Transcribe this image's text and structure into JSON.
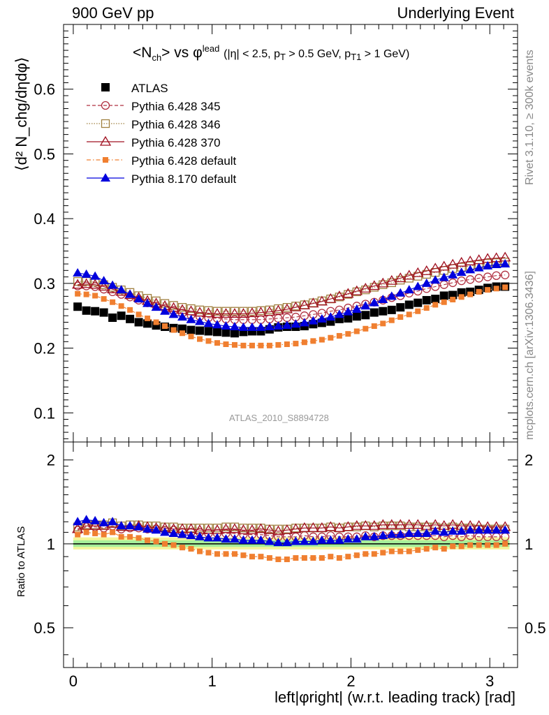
{
  "header": {
    "left": "900 GeV pp",
    "right": "Underlying Event"
  },
  "side_text": {
    "rivet": "Rivet 3.1.10, ≥ 300k events",
    "mcplots": "mcplots.cern.ch [arXiv:1306.3436]"
  },
  "analysis_id": "ATLAS_2010_S8894728",
  "title": {
    "main": "<N",
    "main_sub": "ch",
    "vs": "> vs φ",
    "vs_sup": "lead",
    "cuts": "(|η| < 2.5, p",
    "cuts_sub1": "T",
    "cuts_mid": " > 0.5 GeV, p",
    "cuts_sub2": "T1",
    "cuts_end": " > 1 GeV)"
  },
  "axes": {
    "ylabel_main": "⟨d² N_chg/dηdφ⟩",
    "ylabel_ratio": "Ratio to ATLAS",
    "xlabel": "left|φright| (w.r.t. leading track) [rad]"
  },
  "chart_data": {
    "type": "scatter",
    "xlim": [
      -0.07,
      3.2
    ],
    "main_ylim": [
      0.055,
      0.7
    ],
    "ratio_ylim": [
      0.36,
      2.32
    ],
    "main_yticks": [
      "0.1",
      "0.2",
      "0.3",
      "0.4",
      "0.5",
      "0.6"
    ],
    "ratio_yticks": [
      "0.5",
      "1",
      "2"
    ],
    "xticks": [
      "0",
      "1",
      "2",
      "3"
    ],
    "x": [
      0.0314,
      0.0942,
      0.1571,
      0.2199,
      0.2827,
      0.3456,
      0.4084,
      0.4712,
      0.5341,
      0.5969,
      0.6597,
      0.7226,
      0.7854,
      0.8482,
      0.9111,
      0.9739,
      1.0367,
      1.0996,
      1.1624,
      1.2252,
      1.2881,
      1.3509,
      1.4137,
      1.4765,
      1.5394,
      1.6022,
      1.665,
      1.7279,
      1.7907,
      1.8535,
      1.9164,
      1.9792,
      2.042,
      2.1049,
      2.1677,
      2.2305,
      2.2934,
      2.3562,
      2.419,
      2.4819,
      2.5447,
      2.6075,
      2.6704,
      2.7332,
      2.796,
      2.8588,
      2.9217,
      2.9845,
      3.0473,
      3.1102
    ],
    "series": [
      {
        "name": "ATLAS",
        "color": "#000000",
        "marker": "square-filled",
        "line": "none",
        "values": [
          0.264,
          0.258,
          0.257,
          0.255,
          0.247,
          0.25,
          0.245,
          0.24,
          0.238,
          0.235,
          0.233,
          0.231,
          0.23,
          0.228,
          0.227,
          0.226,
          0.225,
          0.224,
          0.223,
          0.225,
          0.226,
          0.226,
          0.229,
          0.232,
          0.233,
          0.233,
          0.234,
          0.237,
          0.239,
          0.241,
          0.245,
          0.246,
          0.249,
          0.251,
          0.255,
          0.257,
          0.259,
          0.263,
          0.267,
          0.27,
          0.274,
          0.276,
          0.281,
          0.282,
          0.286,
          0.287,
          0.29,
          0.293,
          0.295,
          0.295
        ],
        "ratio": [
          1,
          1,
          1,
          1,
          1,
          1,
          1,
          1,
          1,
          1,
          1,
          1,
          1,
          1,
          1,
          1,
          1,
          1,
          1,
          1,
          1,
          1,
          1,
          1,
          1,
          1,
          1,
          1,
          1,
          1,
          1,
          1,
          1,
          1,
          1,
          1,
          1,
          1,
          1,
          1,
          1,
          1,
          1,
          1,
          1,
          1,
          1,
          1,
          1,
          1
        ]
      },
      {
        "name": "Pythia 6.428 345",
        "color": "#b03040",
        "marker": "circle-open",
        "line": "dashed",
        "values": [
          0.296,
          0.296,
          0.295,
          0.291,
          0.287,
          0.283,
          0.279,
          0.274,
          0.27,
          0.265,
          0.261,
          0.258,
          0.254,
          0.251,
          0.249,
          0.247,
          0.246,
          0.245,
          0.244,
          0.244,
          0.244,
          0.244,
          0.245,
          0.246,
          0.247,
          0.248,
          0.25,
          0.252,
          0.254,
          0.257,
          0.259,
          0.262,
          0.265,
          0.268,
          0.271,
          0.274,
          0.278,
          0.281,
          0.285,
          0.288,
          0.292,
          0.295,
          0.298,
          0.301,
          0.304,
          0.306,
          0.308,
          0.31,
          0.312,
          0.313
        ],
        "ratio": [
          1.12,
          1.15,
          1.15,
          1.14,
          1.16,
          1.13,
          1.14,
          1.14,
          1.13,
          1.13,
          1.12,
          1.12,
          1.1,
          1.1,
          1.1,
          1.09,
          1.09,
          1.09,
          1.09,
          1.08,
          1.08,
          1.08,
          1.07,
          1.06,
          1.06,
          1.06,
          1.07,
          1.06,
          1.06,
          1.07,
          1.06,
          1.06,
          1.06,
          1.07,
          1.06,
          1.07,
          1.07,
          1.07,
          1.07,
          1.07,
          1.07,
          1.07,
          1.06,
          1.07,
          1.06,
          1.07,
          1.06,
          1.06,
          1.06,
          1.06
        ]
      },
      {
        "name": "Pythia 6.428 346",
        "color": "#a08040",
        "marker": "square-open",
        "line": "dotted",
        "values": [
          0.303,
          0.303,
          0.302,
          0.298,
          0.294,
          0.29,
          0.286,
          0.281,
          0.277,
          0.273,
          0.269,
          0.266,
          0.263,
          0.261,
          0.259,
          0.258,
          0.257,
          0.257,
          0.257,
          0.257,
          0.257,
          0.258,
          0.259,
          0.261,
          0.263,
          0.265,
          0.267,
          0.27,
          0.273,
          0.276,
          0.279,
          0.283,
          0.287,
          0.29,
          0.294,
          0.298,
          0.301,
          0.305,
          0.308,
          0.311,
          0.314,
          0.317,
          0.32,
          0.323,
          0.325,
          0.327,
          0.329,
          0.331,
          0.332,
          0.333
        ],
        "ratio": [
          1.15,
          1.17,
          1.17,
          1.17,
          1.19,
          1.16,
          1.17,
          1.17,
          1.16,
          1.16,
          1.15,
          1.15,
          1.14,
          1.14,
          1.14,
          1.14,
          1.14,
          1.15,
          1.15,
          1.14,
          1.14,
          1.14,
          1.13,
          1.13,
          1.13,
          1.14,
          1.14,
          1.14,
          1.14,
          1.15,
          1.14,
          1.15,
          1.15,
          1.16,
          1.15,
          1.16,
          1.16,
          1.16,
          1.15,
          1.15,
          1.15,
          1.15,
          1.14,
          1.15,
          1.14,
          1.14,
          1.13,
          1.13,
          1.13,
          1.13
        ]
      },
      {
        "name": "Pythia 6.428 370",
        "color": "#a01020",
        "marker": "triangle-open",
        "line": "solid",
        "values": [
          0.298,
          0.299,
          0.298,
          0.295,
          0.291,
          0.287,
          0.282,
          0.278,
          0.273,
          0.269,
          0.265,
          0.262,
          0.259,
          0.257,
          0.255,
          0.254,
          0.253,
          0.253,
          0.253,
          0.253,
          0.254,
          0.255,
          0.256,
          0.258,
          0.26,
          0.263,
          0.266,
          0.269,
          0.272,
          0.276,
          0.28,
          0.284,
          0.288,
          0.292,
          0.296,
          0.3,
          0.304,
          0.308,
          0.312,
          0.316,
          0.319,
          0.323,
          0.326,
          0.329,
          0.332,
          0.334,
          0.336,
          0.338,
          0.339,
          0.34
        ],
        "ratio": [
          1.13,
          1.16,
          1.16,
          1.16,
          1.18,
          1.15,
          1.15,
          1.16,
          1.15,
          1.14,
          1.14,
          1.13,
          1.13,
          1.13,
          1.12,
          1.12,
          1.12,
          1.13,
          1.13,
          1.12,
          1.12,
          1.13,
          1.12,
          1.11,
          1.12,
          1.13,
          1.14,
          1.14,
          1.14,
          1.15,
          1.14,
          1.15,
          1.16,
          1.16,
          1.16,
          1.17,
          1.17,
          1.17,
          1.17,
          1.17,
          1.16,
          1.17,
          1.16,
          1.17,
          1.16,
          1.16,
          1.16,
          1.15,
          1.15,
          1.15
        ]
      },
      {
        "name": "Pythia 6.428 default",
        "color": "#f07f30",
        "marker": "square-filled-small",
        "line": "dashdot",
        "values": [
          0.284,
          0.283,
          0.281,
          0.276,
          0.271,
          0.265,
          0.259,
          0.252,
          0.246,
          0.24,
          0.234,
          0.228,
          0.223,
          0.218,
          0.214,
          0.211,
          0.208,
          0.206,
          0.205,
          0.204,
          0.204,
          0.204,
          0.204,
          0.205,
          0.206,
          0.207,
          0.209,
          0.211,
          0.213,
          0.216,
          0.219,
          0.222,
          0.226,
          0.23,
          0.234,
          0.238,
          0.243,
          0.248,
          0.252,
          0.257,
          0.262,
          0.267,
          0.271,
          0.275,
          0.279,
          0.283,
          0.287,
          0.29,
          0.292,
          0.294
        ],
        "ratio": [
          1.08,
          1.1,
          1.09,
          1.08,
          1.1,
          1.06,
          1.06,
          1.05,
          1.03,
          1.02,
          1.0,
          0.99,
          0.97,
          0.96,
          0.94,
          0.93,
          0.92,
          0.92,
          0.92,
          0.91,
          0.9,
          0.9,
          0.89,
          0.88,
          0.88,
          0.89,
          0.89,
          0.89,
          0.89,
          0.9,
          0.89,
          0.9,
          0.91,
          0.92,
          0.92,
          0.93,
          0.94,
          0.94,
          0.94,
          0.95,
          0.96,
          0.97,
          0.96,
          0.98,
          0.98,
          0.99,
          0.99,
          0.99,
          0.99,
          1.0
        ]
      },
      {
        "name": "Pythia 8.170 default",
        "color": "#0000dd",
        "marker": "triangle-filled",
        "line": "solid",
        "values": [
          0.316,
          0.314,
          0.311,
          0.304,
          0.297,
          0.29,
          0.283,
          0.276,
          0.269,
          0.263,
          0.257,
          0.252,
          0.248,
          0.244,
          0.241,
          0.238,
          0.236,
          0.234,
          0.233,
          0.232,
          0.232,
          0.232,
          0.233,
          0.234,
          0.235,
          0.237,
          0.239,
          0.242,
          0.245,
          0.248,
          0.252,
          0.256,
          0.26,
          0.265,
          0.27,
          0.275,
          0.28,
          0.285,
          0.29,
          0.295,
          0.3,
          0.305,
          0.309,
          0.313,
          0.317,
          0.321,
          0.324,
          0.327,
          0.329,
          0.33
        ],
        "ratio": [
          1.2,
          1.22,
          1.21,
          1.19,
          1.2,
          1.16,
          1.16,
          1.15,
          1.13,
          1.12,
          1.1,
          1.09,
          1.08,
          1.07,
          1.06,
          1.05,
          1.05,
          1.04,
          1.04,
          1.03,
          1.03,
          1.03,
          1.02,
          1.01,
          1.01,
          1.02,
          1.02,
          1.02,
          1.03,
          1.03,
          1.03,
          1.04,
          1.04,
          1.06,
          1.06,
          1.07,
          1.08,
          1.08,
          1.09,
          1.09,
          1.09,
          1.11,
          1.1,
          1.11,
          1.11,
          1.12,
          1.12,
          1.12,
          1.12,
          1.12
        ]
      }
    ],
    "legend_position": "top-left"
  }
}
